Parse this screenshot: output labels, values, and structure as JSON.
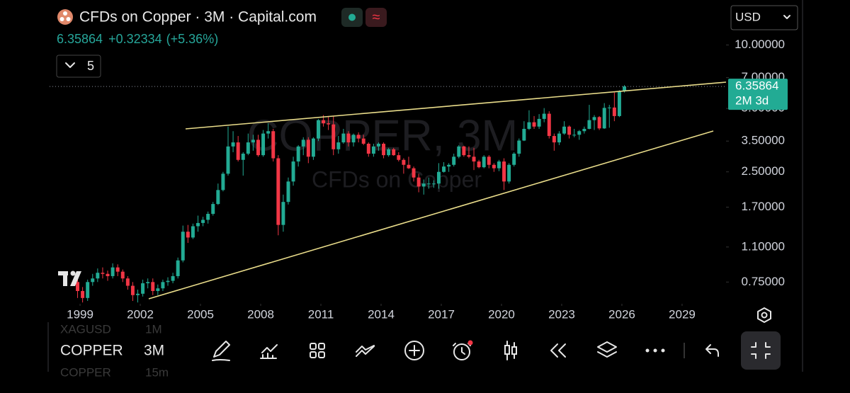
{
  "header": {
    "title": "CFDs on Copper · 3M · Capital.com",
    "change": "+0.32334",
    "change_pct": "(+5.36%)",
    "currency": "USD",
    "indicator_count": "5"
  },
  "chart_data": {
    "type": "candlestick",
    "watermark": "COPPER, 3M",
    "watermark_sub": "CFDs on Copper",
    "countdown": "2M 3d",
    "up_color": "#22ab94",
    "down_color": "#f23645",
    "log_scale": true,
    "grid": false,
    "xlim": [
      1997.48,
      2031.19
    ],
    "xticks": [
      1999,
      2002,
      2005,
      2008,
      2011,
      2014,
      2017,
      2020,
      2023,
      2026,
      2029
    ],
    "ylim": [
      0.61,
      12.0
    ],
    "yticks": [
      {
        "value": 10,
        "label": "10.00000"
      },
      {
        "value": 7,
        "label": "7.00000"
      },
      {
        "value": 5,
        "label": "5.00000"
      },
      {
        "value": 3.5,
        "label": "3.50000"
      },
      {
        "value": 2.5,
        "label": "2.50000"
      },
      {
        "value": 1.7,
        "label": "1.70000"
      },
      {
        "value": 1.1,
        "label": "1.10000"
      },
      {
        "value": 0.75,
        "label": "0.75000"
      }
    ],
    "x": [
      1998.75,
      1999,
      1999.25,
      1999.5,
      1999.75,
      2000,
      2000.25,
      2000.5,
      2000.75,
      2001,
      2001.25,
      2001.5,
      2001.75,
      2002,
      2002.25,
      2002.5,
      2002.75,
      2003,
      2003.25,
      2003.5,
      2003.75,
      2004,
      2004.25,
      2004.5,
      2004.75,
      2005,
      2005.25,
      2005.5,
      2005.75,
      2006,
      2006.25,
      2006.5,
      2006.75,
      2007,
      2007.25,
      2007.5,
      2007.75,
      2008,
      2008.25,
      2008.5,
      2008.75,
      2009,
      2009.25,
      2009.5,
      2009.75,
      2010,
      2010.25,
      2010.5,
      2010.75,
      2011,
      2011.25,
      2011.5,
      2011.75,
      2012,
      2012.25,
      2012.5,
      2012.75,
      2013,
      2013.25,
      2013.5,
      2013.75,
      2014,
      2014.25,
      2014.5,
      2014.75,
      2015,
      2015.25,
      2015.5,
      2015.75,
      2016,
      2016.25,
      2016.5,
      2016.75,
      2017,
      2017.25,
      2017.5,
      2017.75,
      2018,
      2018.25,
      2018.5,
      2018.75,
      2019,
      2019.25,
      2019.5,
      2019.75,
      2020,
      2020.25,
      2020.5,
      2020.75,
      2021,
      2021.25,
      2021.5,
      2021.75,
      2022,
      2022.25,
      2022.5,
      2022.75,
      2023,
      2023.25,
      2023.5,
      2023.75,
      2024,
      2024.25,
      2024.5,
      2024.75,
      2025,
      2025.25,
      2025.5,
      2025.75,
      2026
    ],
    "candles": [
      [
        0.75,
        0.78,
        0.63,
        0.68
      ],
      [
        0.68,
        0.71,
        0.6,
        0.63
      ],
      [
        0.63,
        0.77,
        0.61,
        0.75
      ],
      [
        0.75,
        0.82,
        0.72,
        0.78
      ],
      [
        0.78,
        0.87,
        0.75,
        0.83
      ],
      [
        0.83,
        0.88,
        0.78,
        0.82
      ],
      [
        0.82,
        0.85,
        0.76,
        0.8
      ],
      [
        0.8,
        0.92,
        0.78,
        0.88
      ],
      [
        0.88,
        0.91,
        0.8,
        0.84
      ],
      [
        0.84,
        0.86,
        0.75,
        0.78
      ],
      [
        0.78,
        0.8,
        0.69,
        0.72
      ],
      [
        0.72,
        0.75,
        0.61,
        0.65
      ],
      [
        0.65,
        0.69,
        0.6,
        0.66
      ],
      [
        0.66,
        0.77,
        0.64,
        0.74
      ],
      [
        0.74,
        0.78,
        0.7,
        0.75
      ],
      [
        0.75,
        0.78,
        0.65,
        0.68
      ],
      [
        0.68,
        0.73,
        0.65,
        0.7
      ],
      [
        0.7,
        0.77,
        0.68,
        0.75
      ],
      [
        0.75,
        0.79,
        0.72,
        0.76
      ],
      [
        0.76,
        0.83,
        0.74,
        0.8
      ],
      [
        0.8,
        0.98,
        0.78,
        0.95
      ],
      [
        0.95,
        1.39,
        0.93,
        1.3
      ],
      [
        1.3,
        1.4,
        1.15,
        1.22
      ],
      [
        1.22,
        1.42,
        1.2,
        1.38
      ],
      [
        1.38,
        1.55,
        1.3,
        1.43
      ],
      [
        1.43,
        1.53,
        1.38,
        1.48
      ],
      [
        1.48,
        1.62,
        1.42,
        1.58
      ],
      [
        1.58,
        1.8,
        1.55,
        1.76
      ],
      [
        1.76,
        2.2,
        1.74,
        2.05
      ],
      [
        2.05,
        2.5,
        2.02,
        2.45
      ],
      [
        2.45,
        4.1,
        2.4,
        3.3
      ],
      [
        3.3,
        3.9,
        3.1,
        3.45
      ],
      [
        3.45,
        3.7,
        2.8,
        2.85
      ],
      [
        2.85,
        3.1,
        2.4,
        3.05
      ],
      [
        3.05,
        3.8,
        3.0,
        3.45
      ],
      [
        3.45,
        3.75,
        3.15,
        3.55
      ],
      [
        3.55,
        3.75,
        2.95,
        3.0
      ],
      [
        3.0,
        3.95,
        2.95,
        3.8
      ],
      [
        3.8,
        4.25,
        3.6,
        3.9
      ],
      [
        3.9,
        4.0,
        2.8,
        2.9
      ],
      [
        2.9,
        3.0,
        1.25,
        1.4
      ],
      [
        1.4,
        1.95,
        1.3,
        1.8
      ],
      [
        1.8,
        2.35,
        1.75,
        2.25
      ],
      [
        2.25,
        2.95,
        2.15,
        2.8
      ],
      [
        2.8,
        3.35,
        2.65,
        3.3
      ],
      [
        3.3,
        3.65,
        3.0,
        3.55
      ],
      [
        3.55,
        3.65,
        2.75,
        2.95
      ],
      [
        2.95,
        3.65,
        2.85,
        3.6
      ],
      [
        3.6,
        4.45,
        3.5,
        4.4
      ],
      [
        4.4,
        4.65,
        4.1,
        4.25
      ],
      [
        4.25,
        4.6,
        3.95,
        4.2
      ],
      [
        4.2,
        4.6,
        3.0,
        3.2
      ],
      [
        3.2,
        3.7,
        3.05,
        3.45
      ],
      [
        3.45,
        4.0,
        3.4,
        3.8
      ],
      [
        3.8,
        3.9,
        3.3,
        3.45
      ],
      [
        3.45,
        3.8,
        3.3,
        3.75
      ],
      [
        3.75,
        3.85,
        3.45,
        3.6
      ],
      [
        3.6,
        3.75,
        3.35,
        3.4
      ],
      [
        3.4,
        3.45,
        2.95,
        3.05
      ],
      [
        3.05,
        3.4,
        2.95,
        3.3
      ],
      [
        3.3,
        3.45,
        3.15,
        3.4
      ],
      [
        3.4,
        3.45,
        2.9,
        3.0
      ],
      [
        3.0,
        3.25,
        2.95,
        3.2
      ],
      [
        3.2,
        3.25,
        2.98,
        3.0
      ],
      [
        3.0,
        3.1,
        2.8,
        2.85
      ],
      [
        2.85,
        2.9,
        2.45,
        2.7
      ],
      [
        2.7,
        2.95,
        2.58,
        2.6
      ],
      [
        2.6,
        2.65,
        2.25,
        2.35
      ],
      [
        2.35,
        2.45,
        2.0,
        2.13
      ],
      [
        2.13,
        2.3,
        1.95,
        2.2
      ],
      [
        2.2,
        2.35,
        2.08,
        2.2
      ],
      [
        2.2,
        2.28,
        2.1,
        2.2
      ],
      [
        2.2,
        2.75,
        2.08,
        2.5
      ],
      [
        2.5,
        2.78,
        2.48,
        2.65
      ],
      [
        2.65,
        2.75,
        2.5,
        2.7
      ],
      [
        2.7,
        3.05,
        2.65,
        2.95
      ],
      [
        2.95,
        3.35,
        2.9,
        3.3
      ],
      [
        3.3,
        3.32,
        2.95,
        3.0
      ],
      [
        3.0,
        3.3,
        2.9,
        2.95
      ],
      [
        2.95,
        3.25,
        2.55,
        2.8
      ],
      [
        2.8,
        2.85,
        2.6,
        2.63
      ],
      [
        2.63,
        3.0,
        2.6,
        2.95
      ],
      [
        2.95,
        3.0,
        2.6,
        2.7
      ],
      [
        2.7,
        2.75,
        2.5,
        2.6
      ],
      [
        2.6,
        2.85,
        2.52,
        2.8
      ],
      [
        2.8,
        2.9,
        2.05,
        2.25
      ],
      [
        2.25,
        2.75,
        2.2,
        2.7
      ],
      [
        2.7,
        3.1,
        2.65,
        3.05
      ],
      [
        3.05,
        3.6,
        2.95,
        3.52
      ],
      [
        3.52,
        4.35,
        3.5,
        4.0
      ],
      [
        4.0,
        4.9,
        3.95,
        4.3
      ],
      [
        4.3,
        4.6,
        4.0,
        4.1
      ],
      [
        4.1,
        4.7,
        4.0,
        4.46
      ],
      [
        4.46,
        5.02,
        4.3,
        4.72
      ],
      [
        4.72,
        4.85,
        3.6,
        3.7
      ],
      [
        3.7,
        3.8,
        3.15,
        3.45
      ],
      [
        3.45,
        3.9,
        3.35,
        3.8
      ],
      [
        3.8,
        4.35,
        3.75,
        4.1
      ],
      [
        4.1,
        4.15,
        3.6,
        3.75
      ],
      [
        3.75,
        4.0,
        3.65,
        3.75
      ],
      [
        3.75,
        3.95,
        3.55,
        3.9
      ],
      [
        3.9,
        4.1,
        3.8,
        4.0
      ],
      [
        4.0,
        5.2,
        3.98,
        4.4
      ],
      [
        4.4,
        4.65,
        3.95,
        4.55
      ],
      [
        4.55,
        4.6,
        3.95,
        4.02
      ],
      [
        4.02,
        5.3,
        4.0,
        5.03
      ],
      [
        5.03,
        5.2,
        4.05,
        5.05
      ],
      [
        5.05,
        5.95,
        4.35,
        4.6
      ],
      [
        4.6,
        6.1,
        4.55,
        6.03
      ],
      [
        6.03,
        6.45,
        5.95,
        6.35864
      ]
    ]
  },
  "toolbar": {
    "symbol": "COPPER",
    "interval": "3M"
  },
  "symbol_picker": {
    "above": [
      "XAGUSD",
      "1M"
    ],
    "below": [
      "COPPER",
      "15m"
    ]
  }
}
